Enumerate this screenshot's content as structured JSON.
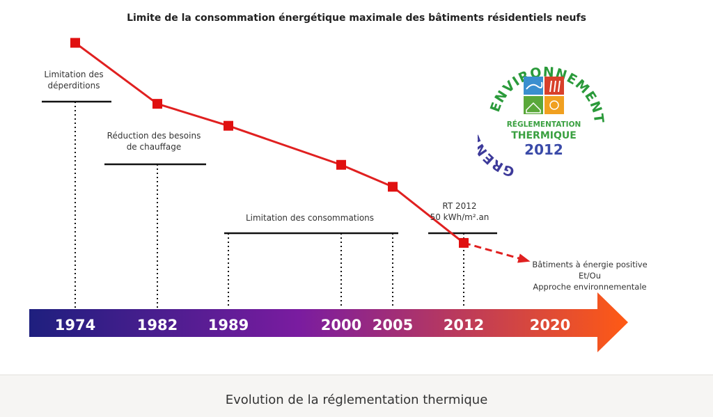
{
  "title": "Limite de la consommation énergétique maximale des bâtiments résidentiels neufs",
  "caption": "Evolution de la réglementation thermique",
  "colors": {
    "line": "#e02020",
    "marker": "#e01010",
    "arrow_start": "#1e1f7e",
    "arrow_mid": "#7a1ca0",
    "arrow_end": "#ff5a14",
    "year_text": "#ffffff"
  },
  "chart_data": {
    "type": "line",
    "title": "Limite de la consommation énergétique maximale des bâtiments résidentiels neufs",
    "xlabel": "",
    "ylabel": "",
    "categories": [
      "1974",
      "1982",
      "1989",
      "2000",
      "2005",
      "2012",
      "2020"
    ],
    "x": [
      1974,
      1982,
      1989,
      2000,
      2005,
      2012
    ],
    "relative_level": [
      100,
      75,
      66,
      50,
      41,
      18
    ],
    "projection": {
      "from": 2012,
      "to": 2020,
      "style": "dashed"
    },
    "ylim": [
      0,
      105
    ],
    "phases": [
      {
        "label": "Limitation des déperditions",
        "years": [
          1974
        ]
      },
      {
        "label": "Réduction des besoins de chauffage",
        "years": [
          1982
        ]
      },
      {
        "label": "Limitation des consommations",
        "years": [
          1989,
          2000,
          2005
        ]
      }
    ],
    "annotations": [
      {
        "label_line1": "RT 2012",
        "label_line2": "50 kWh/m².an",
        "year": 2012
      },
      {
        "label_line1": "Bâtiments à énergie positive",
        "label_line2": "Et/Ou",
        "label_line3": "Approche environnementale",
        "year": 2020
      }
    ]
  },
  "logo": {
    "arc_top": "ENVIRONNEMENT",
    "arc_left": "GRENELLE",
    "center_line1": "RÉGLEMENTATION",
    "center_line2": "THERMIQUE",
    "center_line3": "2012"
  }
}
